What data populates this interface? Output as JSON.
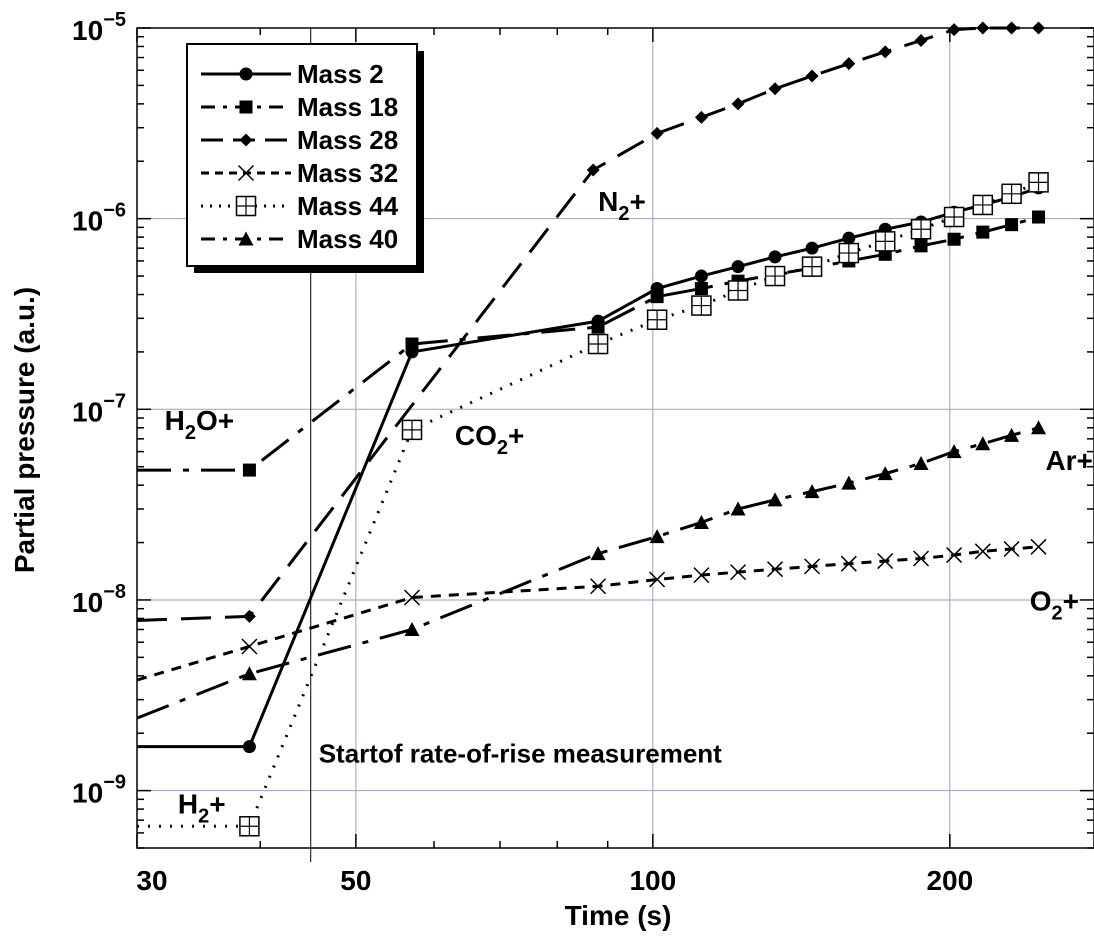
{
  "chart_data": {
    "type": "line",
    "xlabel": "Time (s)",
    "ylabel": "Partial pressure (a.u.)",
    "x_scale": "log",
    "y_scale": "log",
    "xlim": [
      30,
      280
    ],
    "ylim": [
      5e-10,
      1e-05
    ],
    "x_ticks": [
      {
        "value": 30,
        "label": "30"
      },
      {
        "value": 50,
        "label": "50"
      },
      {
        "value": 100,
        "label": "100"
      },
      {
        "value": 200,
        "label": "200"
      }
    ],
    "y_ticks": [
      {
        "value": 1e-09,
        "base": "10",
        "exp": "−9"
      },
      {
        "value": 1e-08,
        "base": "10",
        "exp": "−8"
      },
      {
        "value": 1e-07,
        "base": "10",
        "exp": "−7"
      },
      {
        "value": 1e-06,
        "base": "10",
        "exp": "−6"
      },
      {
        "value": 1e-05,
        "base": "10",
        "exp": "−5"
      }
    ],
    "grid": true,
    "legend_position": "top-left",
    "vertical_marker": {
      "x": 45,
      "label": "Startof rate-of-rise measurement"
    },
    "series": [
      {
        "name": "Mass 2",
        "marker": "circle",
        "dash": "solid",
        "x": [
          29,
          39,
          57,
          88,
          101,
          112,
          122,
          133,
          145,
          158,
          172,
          187,
          202,
          216,
          231,
          246
        ],
        "y": [
          1.7e-09,
          1.7e-09,
          2e-07,
          2.9e-07,
          4.3e-07,
          5e-07,
          5.6e-07,
          6.3e-07,
          7e-07,
          7.9e-07,
          8.8e-07,
          9.6e-07,
          1.08e-06,
          1.18e-06,
          1.3e-06,
          1.45e-06
        ]
      },
      {
        "name": "Mass 18",
        "marker": "square",
        "dash": "dashdot",
        "x": [
          29,
          39,
          57,
          88,
          101,
          112,
          122,
          133,
          145,
          158,
          172,
          187,
          202,
          216,
          231,
          246
        ],
        "y": [
          4.8e-08,
          4.8e-08,
          2.2e-07,
          2.7e-07,
          3.9e-07,
          4.3e-07,
          4.7e-07,
          5.1e-07,
          5.5e-07,
          6e-07,
          6.5e-07,
          7.2e-07,
          7.8e-07,
          8.5e-07,
          9.3e-07,
          1.02e-06
        ]
      },
      {
        "name": "Mass 28",
        "marker": "diamond",
        "dash": "longdash",
        "x": [
          29,
          39,
          87,
          101,
          112,
          122,
          133,
          145,
          158,
          172,
          187,
          202,
          216,
          231,
          246
        ],
        "y": [
          7.8e-09,
          8.2e-09,
          1.8e-06,
          2.8e-06,
          3.4e-06,
          4e-06,
          4.8e-06,
          5.6e-06,
          6.5e-06,
          7.5e-06,
          8.6e-06,
          9.8e-06,
          1e-05,
          1e-05,
          1e-05
        ]
      },
      {
        "name": "Mass 32",
        "marker": "x",
        "dash": "shortdash",
        "x": [
          29,
          39,
          57,
          88,
          101,
          112,
          122,
          133,
          145,
          158,
          172,
          187,
          202,
          216,
          231,
          246
        ],
        "y": [
          3.8e-09,
          5.7e-09,
          1.03e-08,
          1.18e-08,
          1.28e-08,
          1.35e-08,
          1.4e-08,
          1.45e-08,
          1.5e-08,
          1.55e-08,
          1.6e-08,
          1.65e-08,
          1.72e-08,
          1.8e-08,
          1.85e-08,
          1.9e-08
        ]
      },
      {
        "name": "Mass 44",
        "marker": "boxplus",
        "dash": "dotted",
        "x": [
          29,
          39,
          57,
          88,
          101,
          112,
          122,
          133,
          145,
          158,
          172,
          187,
          202,
          216,
          231,
          246
        ],
        "y": [
          6.5e-10,
          6.5e-10,
          7.8e-08,
          2.2e-07,
          2.95e-07,
          3.5e-07,
          4.2e-07,
          5e-07,
          5.6e-07,
          6.6e-07,
          7.6e-07,
          8.8e-07,
          1.02e-06,
          1.18e-06,
          1.35e-06,
          1.55e-06
        ]
      },
      {
        "name": "Mass 40",
        "marker": "triangle",
        "dash": "dashdot2",
        "x": [
          29,
          39,
          57,
          88,
          101,
          112,
          122,
          133,
          145,
          158,
          172,
          187,
          202,
          216,
          231,
          246
        ],
        "y": [
          2.4e-09,
          4.1e-09,
          7e-09,
          1.75e-08,
          2.15e-08,
          2.55e-08,
          3e-08,
          3.35e-08,
          3.7e-08,
          4.1e-08,
          4.6e-08,
          5.2e-08,
          6e-08,
          6.6e-08,
          7.3e-08,
          8e-08
        ]
      }
    ],
    "annotations": [
      {
        "key": "n2",
        "base": "N",
        "sub": "2",
        "tail": "+",
        "x": 88,
        "y": 1.1e-06
      },
      {
        "key": "co2",
        "base": "CO",
        "sub": "2",
        "tail": "+",
        "x": 63,
        "y": 6.5e-08
      },
      {
        "key": "h2o",
        "base": "H",
        "sub": "2",
        "tail": "O+",
        "x": 32,
        "y": 7.8e-08
      },
      {
        "key": "ar",
        "base": "Ar+",
        "sub": "",
        "tail": "",
        "x": 250,
        "y": 4.8e-08
      },
      {
        "key": "o2",
        "base": "O",
        "sub": "2",
        "tail": "+",
        "x": 241,
        "y": 8.8e-09
      },
      {
        "key": "h2",
        "base": "H",
        "sub": "2",
        "tail": "+",
        "x": 33,
        "y": 7.6e-10
      }
    ]
  }
}
